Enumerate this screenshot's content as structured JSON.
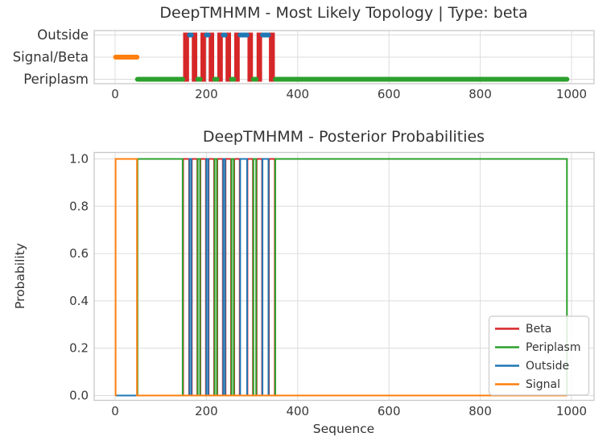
{
  "figure1": {
    "title": "DeepTMHMM - Most Likely Topology | Type: beta",
    "y_categories": [
      "Outside",
      "Signal/Beta",
      "Periplasm"
    ],
    "x_ticks": [
      "0",
      "200",
      "400",
      "600",
      "800",
      "1000"
    ]
  },
  "figure2": {
    "title": "DeepTMHMM - Posterior Probabilities",
    "xlabel": "Sequence",
    "ylabel": "Probability",
    "y_ticks": [
      "1.0",
      "0.8",
      "0.6",
      "0.4",
      "0.2",
      "0.0"
    ],
    "x_ticks": [
      "0",
      "200",
      "400",
      "600",
      "800",
      "1000"
    ],
    "legend": {
      "position": "lower right",
      "entries": [
        {
          "label": "Beta",
          "color": "#d62728"
        },
        {
          "label": "Periplasm",
          "color": "#2ca02c"
        },
        {
          "label": "Outside",
          "color": "#1f77b4"
        },
        {
          "label": "Signal",
          "color": "#ff7f0e"
        }
      ]
    }
  },
  "colors": {
    "Beta": "#d62728",
    "Periplasm": "#2ca02c",
    "Outside": "#1f77b4",
    "Signal": "#ff7f0e"
  },
  "chart_data": [
    {
      "type": "line",
      "subtype": "topology-track",
      "title": "DeepTMHMM - Most Likely Topology | Type: beta",
      "predicted_type": "beta",
      "sequence_length": 990,
      "xlim": [
        -46,
        1049
      ],
      "x_ticks": [
        0,
        200,
        400,
        600,
        800,
        1000
      ],
      "y_categories": [
        "Outside",
        "Signal/Beta",
        "Periplasm"
      ],
      "grid": true,
      "segments": [
        {
          "label": "Signal",
          "start": 1,
          "end": 48
        },
        {
          "label": "Periplasm",
          "start": 49,
          "end": 148
        },
        {
          "label": "Beta",
          "start": 149,
          "end": 162
        },
        {
          "label": "Outside",
          "start": 163,
          "end": 167
        },
        {
          "label": "Beta",
          "start": 168,
          "end": 180
        },
        {
          "label": "Periplasm",
          "start": 181,
          "end": 186
        },
        {
          "label": "Beta",
          "start": 187,
          "end": 199
        },
        {
          "label": "Outside",
          "start": 200,
          "end": 204
        },
        {
          "label": "Beta",
          "start": 205,
          "end": 217
        },
        {
          "label": "Periplasm",
          "start": 218,
          "end": 223
        },
        {
          "label": "Beta",
          "start": 224,
          "end": 236
        },
        {
          "label": "Outside",
          "start": 237,
          "end": 241
        },
        {
          "label": "Beta",
          "start": 242,
          "end": 254
        },
        {
          "label": "Periplasm",
          "start": 255,
          "end": 260
        },
        {
          "label": "Beta",
          "start": 261,
          "end": 273
        },
        {
          "label": "Outside",
          "start": 274,
          "end": 289
        },
        {
          "label": "Beta",
          "start": 290,
          "end": 302
        },
        {
          "label": "Periplasm",
          "start": 303,
          "end": 309
        },
        {
          "label": "Beta",
          "start": 310,
          "end": 322
        },
        {
          "label": "Outside",
          "start": 323,
          "end": 336
        },
        {
          "label": "Beta",
          "start": 337,
          "end": 350
        },
        {
          "label": "Periplasm",
          "start": 351,
          "end": 990
        }
      ]
    },
    {
      "type": "line",
      "subtype": "step-probability",
      "title": "DeepTMHMM - Posterior Probabilities",
      "xlabel": "Sequence",
      "ylabel": "Probability",
      "xlim": [
        -46,
        1049
      ],
      "ylim": [
        0,
        1
      ],
      "x_ticks": [
        0,
        200,
        400,
        600,
        800,
        1000
      ],
      "y_ticks": [
        0.0,
        0.2,
        0.4,
        0.6,
        0.8,
        1.0
      ],
      "grid": true,
      "legend_position": "lower right",
      "x_domain": [
        0,
        990
      ],
      "series": [
        {
          "name": "Beta",
          "color": "#d62728",
          "description": "probability 1 inside listed intervals, 0 elsewhere",
          "intervals_at_1": [
            [
              149,
              162
            ],
            [
              168,
              180
            ],
            [
              187,
              199
            ],
            [
              205,
              217
            ],
            [
              224,
              236
            ],
            [
              242,
              254
            ],
            [
              261,
              273
            ],
            [
              290,
              302
            ],
            [
              310,
              322
            ],
            [
              337,
              350
            ]
          ]
        },
        {
          "name": "Periplasm",
          "color": "#2ca02c",
          "description": "probability 1 inside listed intervals, 0 elsewhere",
          "intervals_at_1": [
            [
              49,
              148
            ],
            [
              181,
              186
            ],
            [
              218,
              223
            ],
            [
              255,
              260
            ],
            [
              303,
              309
            ],
            [
              351,
              990
            ]
          ]
        },
        {
          "name": "Outside",
          "color": "#1f77b4",
          "description": "probability 1 inside listed intervals, 0 elsewhere",
          "intervals_at_1": [
            [
              163,
              167
            ],
            [
              200,
              204
            ],
            [
              237,
              241
            ],
            [
              274,
              289
            ],
            [
              323,
              336
            ]
          ]
        },
        {
          "name": "Signal",
          "color": "#ff7f0e",
          "description": "probability 1 inside listed intervals, 0 elsewhere",
          "intervals_at_1": [
            [
              1,
              48
            ]
          ]
        }
      ]
    }
  ]
}
